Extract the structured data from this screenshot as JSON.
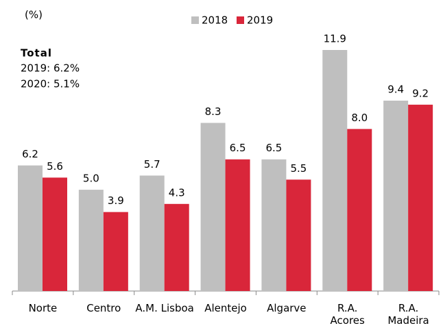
{
  "chart_data": {
    "type": "bar",
    "unit_label": "(%)",
    "annotation": {
      "title": "Total",
      "lines": [
        "2019: 6.2%",
        "2020: 5.1%"
      ]
    },
    "categories": [
      "Norte",
      "Centro",
      "A.M. Lisboa",
      "Alentejo",
      "Algarve",
      "R.A.\nAcores",
      "R.A.\nMadeira"
    ],
    "series": [
      {
        "name": "2018",
        "color": "#bfbfbf",
        "values": [
          6.2,
          5.0,
          5.7,
          8.3,
          6.5,
          11.9,
          9.4
        ],
        "value_labels": [
          "6.2",
          "5.0",
          "5.7",
          "8.3",
          "6.5",
          "11.9",
          "9.4"
        ]
      },
      {
        "name": "2019",
        "color": "#d9263a",
        "values": [
          5.6,
          3.9,
          4.3,
          6.5,
          5.5,
          8.0,
          9.2
        ],
        "value_labels": [
          "5.6",
          "3.9",
          "4.3",
          "6.5",
          "5.5",
          "8.0",
          "9.2"
        ]
      }
    ]
  }
}
